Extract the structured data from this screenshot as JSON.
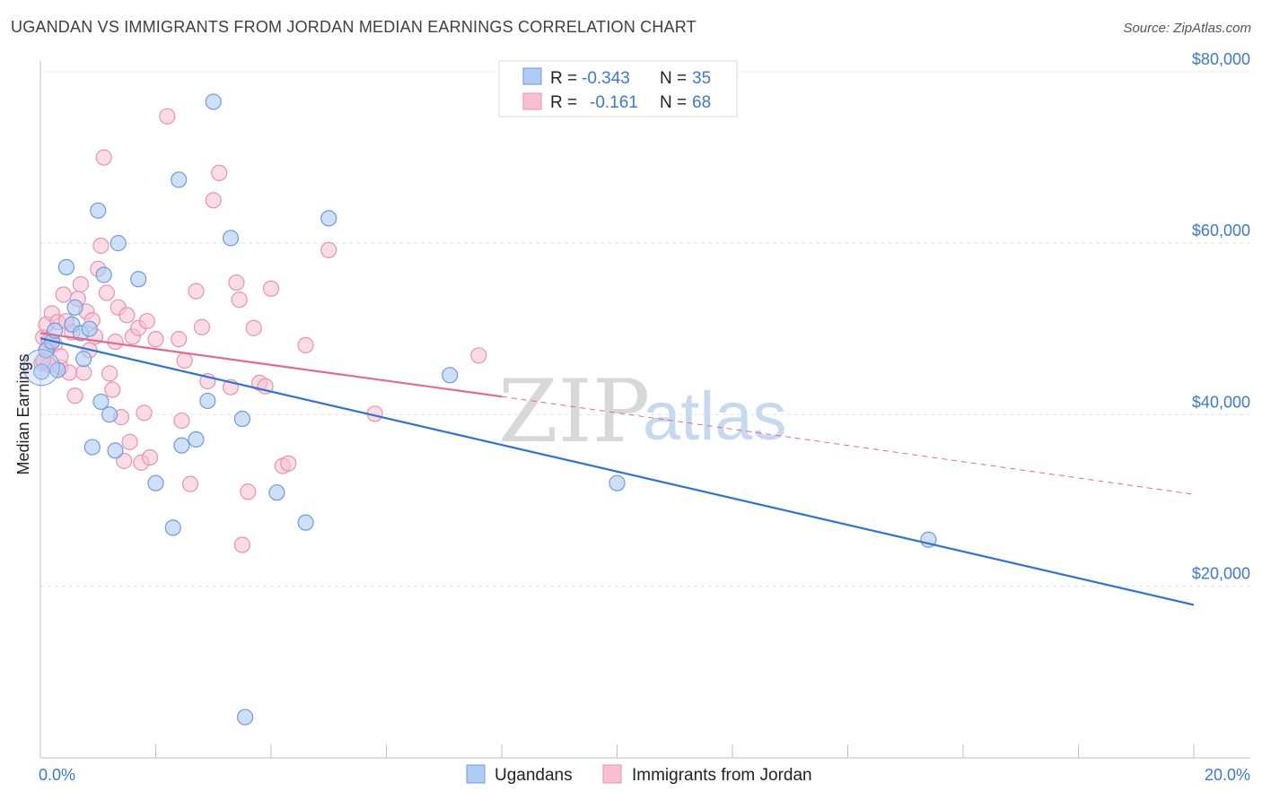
{
  "title": "UGANDAN VS IMMIGRANTS FROM JORDAN MEDIAN EARNINGS CORRELATION CHART",
  "source": "Source: ZipAtlas.com",
  "watermark": {
    "zip": "ZIP",
    "atlas": "atlas"
  },
  "legend": {
    "rows": [
      {
        "r_label": "R =",
        "r_value": "-0.343",
        "n_label": "N =",
        "n_value": "35"
      },
      {
        "r_label": "R =",
        "r_value": "-0.161",
        "n_label": "N =",
        "n_value": "68"
      }
    ]
  },
  "bottom_legend": [
    "Ugandans",
    "Immigrants from Jordan"
  ],
  "colors": {
    "ugandans_fill": "#aecbf3",
    "ugandans_stroke": "#6d9be0",
    "ugandans_line": "#2f72d6",
    "jordan_fill": "#f8c0d2",
    "jordan_stroke": "#e992b0",
    "jordan_line": "#e5698f",
    "tick_label": "#3b78d0",
    "grid": "#e3e3e3"
  },
  "chart_data": {
    "type": "scatter",
    "title": "UGANDAN VS IMMIGRANTS FROM JORDAN MEDIAN EARNINGS CORRELATION CHART",
    "xlabel": "",
    "ylabel": "Median Earnings",
    "xlim": [
      0,
      20
    ],
    "ylim": [
      0,
      84000
    ],
    "x_tick_labels": [
      "0.0%",
      "20.0%"
    ],
    "y_ticks": [
      20000,
      40000,
      60000,
      80000
    ],
    "y_tick_labels": [
      "$20,000",
      "$40,000",
      "$60,000",
      "$80,000"
    ],
    "grid": true,
    "legend_position": "top-center",
    "series": [
      {
        "name": "Ugandans",
        "r": -0.343,
        "n": 35,
        "trend": {
          "x": [
            0,
            20
          ],
          "y": [
            48900,
            17800
          ],
          "style": "solid"
        },
        "points": [
          [
            0.02,
            45000
          ],
          [
            0.1,
            47500
          ],
          [
            0.2,
            48500
          ],
          [
            0.3,
            45200
          ],
          [
            0.45,
            57200
          ],
          [
            0.55,
            50500
          ],
          [
            0.7,
            49500
          ],
          [
            0.75,
            46500
          ],
          [
            0.85,
            50000
          ],
          [
            0.9,
            36200
          ],
          [
            1.0,
            63800
          ],
          [
            1.05,
            41500
          ],
          [
            1.1,
            56300
          ],
          [
            1.2,
            40000
          ],
          [
            1.3,
            35800
          ],
          [
            1.35,
            60000
          ],
          [
            1.7,
            55800
          ],
          [
            2.0,
            32000
          ],
          [
            2.3,
            26800
          ],
          [
            2.4,
            67400
          ],
          [
            2.45,
            36400
          ],
          [
            2.7,
            37100
          ],
          [
            2.9,
            41600
          ],
          [
            3.0,
            76500
          ],
          [
            3.3,
            60600
          ],
          [
            3.5,
            39500
          ],
          [
            3.55,
            4700
          ],
          [
            4.1,
            30900
          ],
          [
            4.6,
            27400
          ],
          [
            5.0,
            62900
          ],
          [
            7.1,
            44600
          ],
          [
            10.0,
            32000
          ],
          [
            15.4,
            25400
          ],
          [
            0.6,
            52500
          ],
          [
            0.25,
            49800
          ]
        ]
      },
      {
        "name": "Immigrants from Jordan",
        "r": -0.161,
        "n": 68,
        "trend": {
          "x": [
            0,
            8.0,
            20
          ],
          "y": [
            49500,
            42100,
            30700
          ],
          "style": "solid-then-dashed"
        },
        "points": [
          [
            0.02,
            46000
          ],
          [
            0.05,
            49000
          ],
          [
            0.1,
            50500
          ],
          [
            0.15,
            45800
          ],
          [
            0.2,
            51800
          ],
          [
            0.25,
            48200
          ],
          [
            0.3,
            50800
          ],
          [
            0.35,
            45500
          ],
          [
            0.4,
            54000
          ],
          [
            0.45,
            50900
          ],
          [
            0.5,
            44900
          ],
          [
            0.6,
            42200
          ],
          [
            0.65,
            53500
          ],
          [
            0.7,
            55200
          ],
          [
            0.75,
            44900
          ],
          [
            0.8,
            52000
          ],
          [
            0.85,
            47500
          ],
          [
            0.9,
            51000
          ],
          [
            0.95,
            49100
          ],
          [
            1.0,
            57000
          ],
          [
            1.05,
            59700
          ],
          [
            1.1,
            70000
          ],
          [
            1.15,
            54200
          ],
          [
            1.2,
            44800
          ],
          [
            1.25,
            42900
          ],
          [
            1.3,
            48500
          ],
          [
            1.35,
            52500
          ],
          [
            1.4,
            39700
          ],
          [
            1.45,
            34600
          ],
          [
            1.5,
            51600
          ],
          [
            1.55,
            36800
          ],
          [
            1.6,
            49100
          ],
          [
            1.7,
            50100
          ],
          [
            1.75,
            34400
          ],
          [
            1.8,
            40200
          ],
          [
            1.85,
            50900
          ],
          [
            1.9,
            35000
          ],
          [
            2.0,
            48800
          ],
          [
            2.2,
            74800
          ],
          [
            2.4,
            48800
          ],
          [
            2.45,
            39300
          ],
          [
            2.5,
            46300
          ],
          [
            2.6,
            31900
          ],
          [
            2.7,
            54400
          ],
          [
            2.8,
            50200
          ],
          [
            2.9,
            43900
          ],
          [
            3.0,
            65000
          ],
          [
            3.1,
            68200
          ],
          [
            3.3,
            43200
          ],
          [
            3.4,
            55400
          ],
          [
            3.45,
            53400
          ],
          [
            3.5,
            24800
          ],
          [
            3.6,
            31000
          ],
          [
            3.7,
            50100
          ],
          [
            3.8,
            43700
          ],
          [
            3.9,
            43300
          ],
          [
            4.0,
            54700
          ],
          [
            4.2,
            34000
          ],
          [
            4.3,
            34300
          ],
          [
            4.6,
            48100
          ],
          [
            5.0,
            59200
          ],
          [
            5.8,
            40100
          ],
          [
            7.6,
            46900
          ],
          [
            0.12,
            47700
          ],
          [
            0.55,
            49600
          ],
          [
            0.35,
            46800
          ],
          [
            0.15,
            48600
          ],
          [
            0.05,
            46300
          ]
        ]
      }
    ]
  }
}
